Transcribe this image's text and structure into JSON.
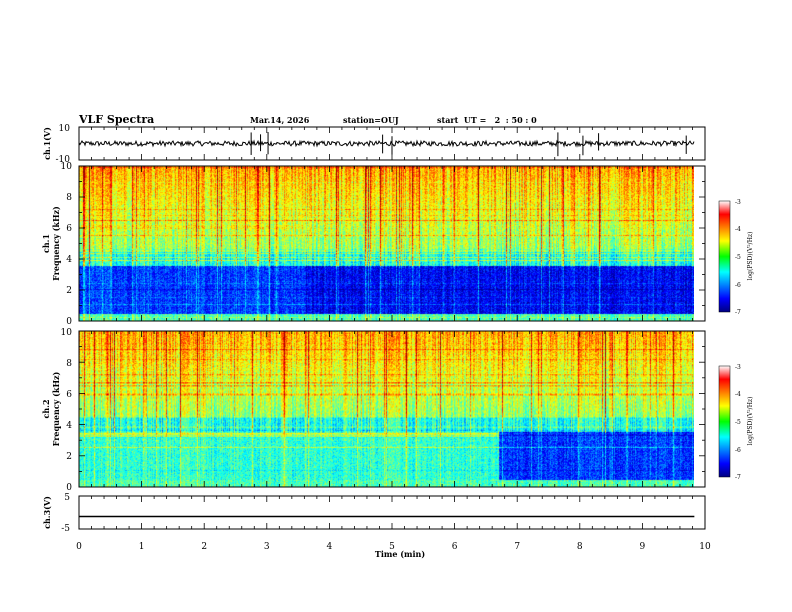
{
  "chart_data": {
    "type": "heatmap",
    "header": {
      "title": "VLF Spectra",
      "date": "Mar.14, 2026",
      "station": "station=OUJ",
      "start": "start  UT =   2  : 50 : 0"
    },
    "time_axis": {
      "label": "Time  (min)",
      "range": [
        0,
        10
      ],
      "ticks": [
        "0",
        "1",
        "2",
        "3",
        "4",
        "5",
        "6",
        "7",
        "8",
        "9",
        "10"
      ],
      "data_end_min": 9.83
    },
    "ch1_waveform": {
      "ylabel": "ch.1(V)",
      "ylim": [
        -10,
        10
      ],
      "tick_labels": [
        "10",
        "-10"
      ],
      "baseline_v": 0,
      "noise_amp_v": 1.5,
      "spike_times_min": [
        2.75,
        2.9,
        3.02,
        4.85,
        5.0,
        7.65,
        8.05,
        8.3,
        9.7
      ]
    },
    "ch1_spectrogram": {
      "ylabel_channel": "ch.1",
      "ylabel": "Frequency  (kHz)",
      "ylim_khz": [
        0,
        10
      ],
      "tick_labels": [
        "0",
        "2",
        "4",
        "6",
        "8",
        "10"
      ],
      "band_note": "quiet 0.5-3.5 kHz band; stronger activity above 4 kHz"
    },
    "ch2_spectrogram": {
      "ylabel_channel": "ch.2",
      "ylabel": "Frequency  (kHz)",
      "ylim_khz": [
        0,
        10
      ],
      "tick_labels": [
        "0",
        "2",
        "4",
        "6",
        "8",
        "10"
      ],
      "band_note": "line near 3.4 kHz ends at 6.7 min; quiet 0.5-3.5 kHz band after 6.7 min"
    },
    "ch3_waveform": {
      "ylabel": "ch.3(V)",
      "ylim": [
        -5,
        5
      ],
      "tick_labels": [
        "5",
        "-5"
      ],
      "value_v": -1.2
    },
    "colorbar": {
      "label": "log(PSD)(V²/Hz)",
      "range": [
        -7,
        -3
      ],
      "tick_labels": [
        "-3",
        "-4",
        "-5",
        "-6",
        "-7"
      ]
    }
  }
}
